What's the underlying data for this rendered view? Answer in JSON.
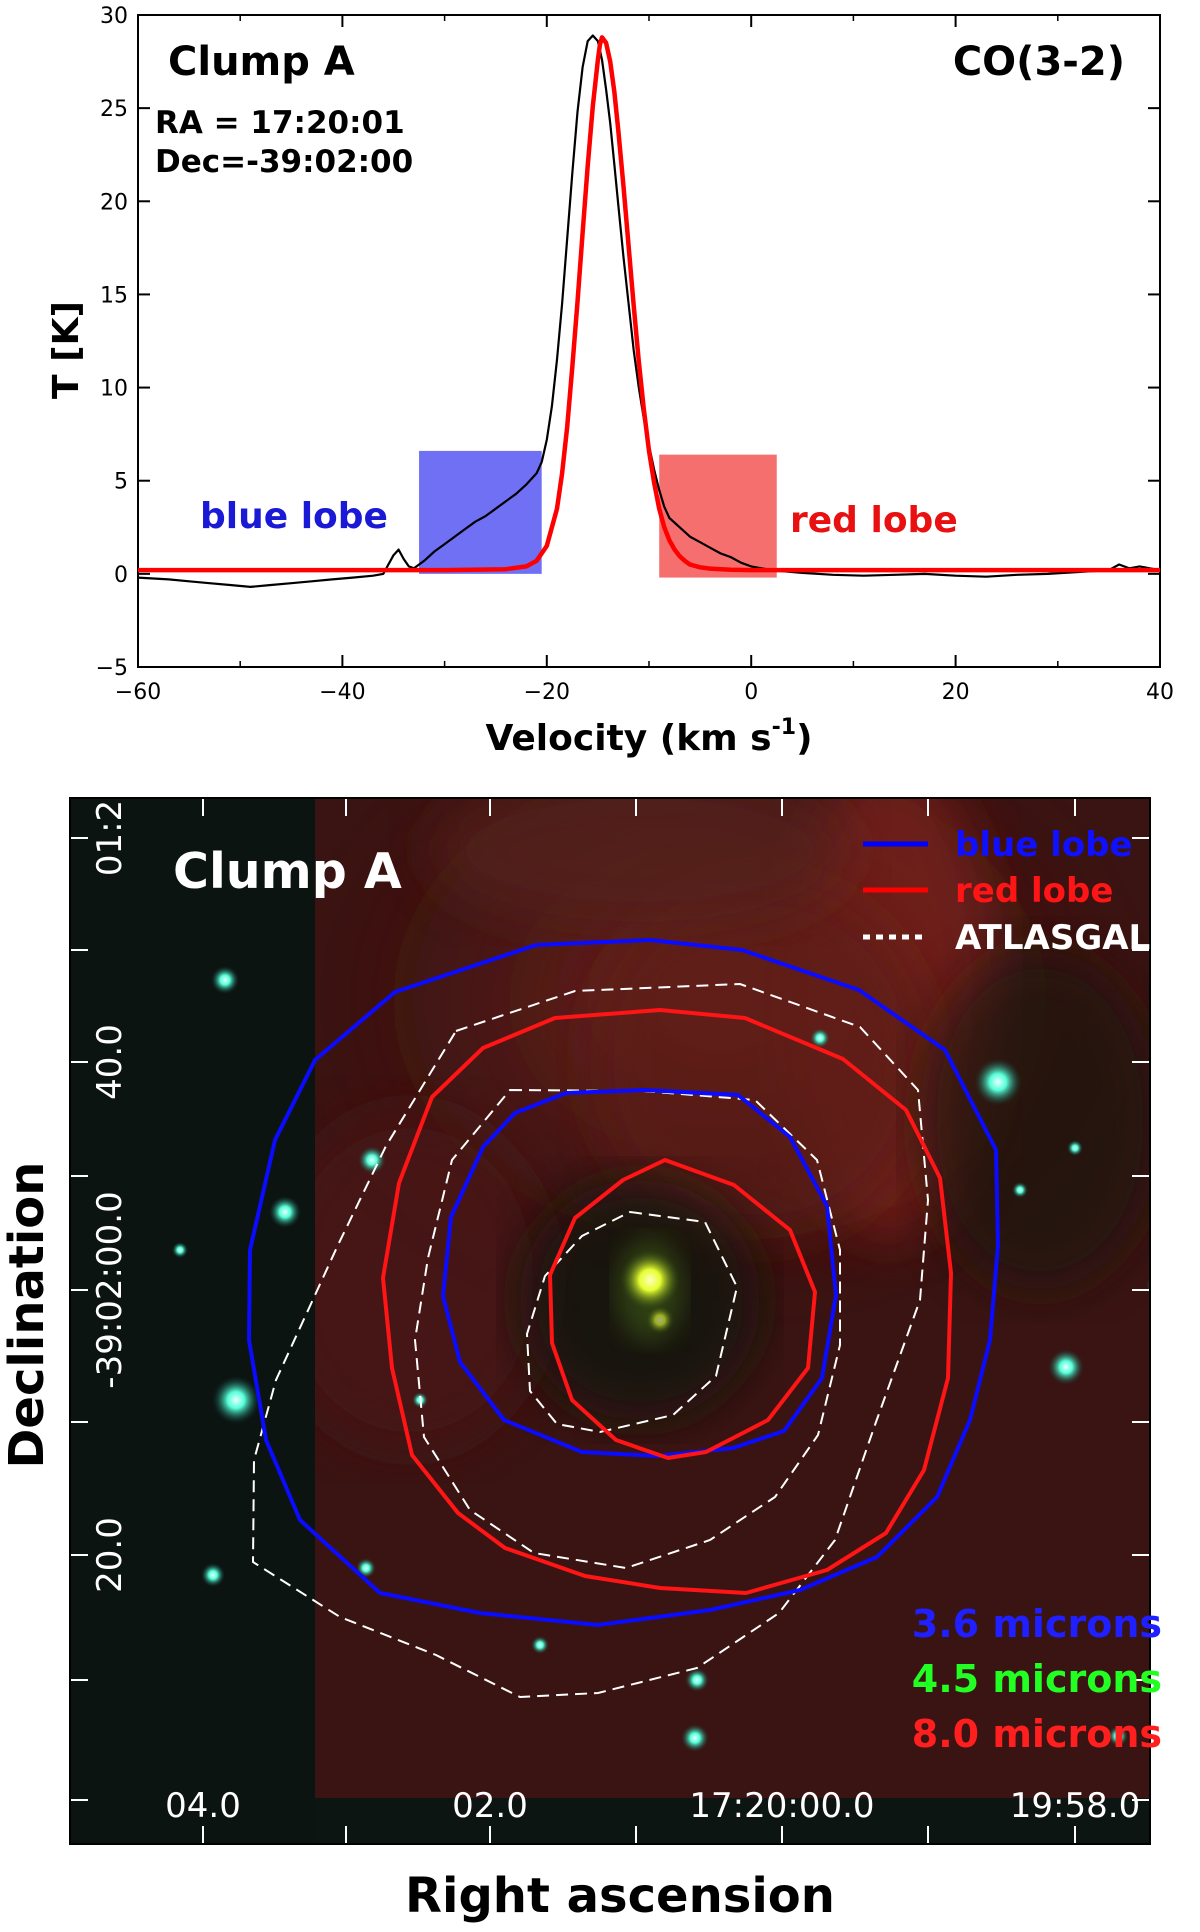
{
  "chart_data": [
    {
      "type": "line",
      "title": "Clump A",
      "line_name": "CO(3-2)",
      "coords": [
        "RA = 17:20:01",
        "Dec=-39:02:00"
      ],
      "xlabel_main": "Velocity (km s",
      "xlabel_sup": "-1",
      "xlabel_close": ")",
      "ylabel": "T [K]",
      "xlim": [
        -60,
        40
      ],
      "ylim": [
        -5,
        30
      ],
      "xticks": [
        -60,
        -40,
        -20,
        0,
        20,
        40
      ],
      "yticks": [
        -5,
        0,
        5,
        10,
        15,
        20,
        25,
        30
      ],
      "regions": [
        {
          "name": "blue lobe",
          "x": [
            -32.5,
            -20.5
          ],
          "y": [
            0,
            6.6
          ],
          "color": "#7070f5",
          "label_color": "#1a1ad6"
        },
        {
          "name": "red lobe",
          "x": [
            -9,
            2.5
          ],
          "y": [
            -0.2,
            6.4
          ],
          "color": "#f56f6f",
          "label_color": "#e81010"
        }
      ],
      "series": [
        {
          "role": "observed spectrum",
          "color": "#000000",
          "x": [
            -60,
            -57,
            -55,
            -53,
            -51,
            -49,
            -47,
            -45,
            -43,
            -41,
            -39,
            -37,
            -36,
            -35.5,
            -35,
            -34.5,
            -34,
            -33.5,
            -33,
            -32.5,
            -32,
            -31,
            -30,
            -29,
            -28,
            -27,
            -26,
            -25,
            -24,
            -23,
            -22,
            -21,
            -20.5,
            -20,
            -19.5,
            -19,
            -18.5,
            -18,
            -17.5,
            -17,
            -16.5,
            -16,
            -15.5,
            -15,
            -14.6,
            -14.2,
            -13.8,
            -13.4,
            -13,
            -12.5,
            -12,
            -11.5,
            -11,
            -10.5,
            -10,
            -9.5,
            -9,
            -8.5,
            -8,
            -7,
            -6,
            -5,
            -4,
            -3,
            -2,
            -1,
            0,
            1,
            2,
            3,
            5,
            8,
            11,
            14,
            17,
            20,
            23,
            26,
            29,
            32,
            35,
            36,
            37,
            38,
            39,
            40
          ],
          "y": [
            -0.2,
            -0.3,
            -0.4,
            -0.5,
            -0.6,
            -0.7,
            -0.6,
            -0.5,
            -0.4,
            -0.3,
            -0.2,
            -0.1,
            0.0,
            0.5,
            1.0,
            1.3,
            0.8,
            0.4,
            0.3,
            0.5,
            0.7,
            1.2,
            1.6,
            2.0,
            2.4,
            2.8,
            3.1,
            3.5,
            3.9,
            4.3,
            4.8,
            5.4,
            6.0,
            7.2,
            9.0,
            11.5,
            14.5,
            18.0,
            21.5,
            24.8,
            27.2,
            28.6,
            28.9,
            28.6,
            27.6,
            26.0,
            24.2,
            22.0,
            19.8,
            17.0,
            14.5,
            12.0,
            10.0,
            8.3,
            6.9,
            5.6,
            4.5,
            3.6,
            3.0,
            2.5,
            2.0,
            1.7,
            1.4,
            1.1,
            0.9,
            0.6,
            0.4,
            0.3,
            0.2,
            0.15,
            0.05,
            -0.05,
            -0.1,
            -0.05,
            0.0,
            -0.1,
            -0.15,
            -0.05,
            0.0,
            0.1,
            0.2,
            0.5,
            0.3,
            0.4,
            0.3,
            0.2
          ]
        },
        {
          "role": "gaussian fit",
          "color": "#ff0000",
          "x": [
            -60,
            -30,
            -24,
            -22,
            -21,
            -20,
            -19,
            -18.5,
            -18,
            -17.5,
            -17,
            -16.5,
            -16,
            -15.5,
            -15,
            -14.8,
            -14.6,
            -14.2,
            -13.8,
            -13.4,
            -13,
            -12.5,
            -12,
            -11.5,
            -11,
            -10.5,
            -10,
            -9.5,
            -9,
            -8.5,
            -8,
            -7.5,
            -7,
            -6.5,
            -6,
            -5,
            -4,
            -2,
            0,
            5,
            40
          ],
          "y": [
            0.2,
            0.2,
            0.25,
            0.4,
            0.7,
            1.5,
            3.5,
            5.4,
            7.9,
            11.1,
            14.6,
            18.3,
            21.9,
            25.1,
            27.6,
            28.4,
            28.8,
            28.5,
            27.5,
            25.9,
            23.8,
            20.8,
            17.6,
            14.4,
            11.4,
            8.8,
            6.6,
            4.9,
            3.5,
            2.5,
            1.8,
            1.3,
            0.95,
            0.7,
            0.5,
            0.35,
            0.28,
            0.22,
            0.2,
            0.2,
            0.2
          ]
        }
      ]
    },
    {
      "type": "image",
      "title": "Clump A",
      "xlabel": "Right ascension",
      "ylabel": "Declination",
      "xticks": [
        "04.0",
        "02.0",
        "17:20:00.0",
        "19:58.0"
      ],
      "yticks": [
        "01:2",
        "40.0",
        "-39:02:00.0",
        "20.0"
      ],
      "legend": [
        {
          "name": "blue lobe",
          "color": "#0000ff",
          "style": "solid"
        },
        {
          "name": "red lobe",
          "color": "#ff0000",
          "style": "solid"
        },
        {
          "name": "ATLASGAL",
          "color": "#ffffff",
          "style": "dotted"
        }
      ],
      "bands": [
        {
          "name": "3.6 microns",
          "color": "#1f1fff"
        },
        {
          "name": "4.5 microns",
          "color": "#22ff22"
        },
        {
          "name": "8.0 microns",
          "color": "#ff1f1f"
        }
      ]
    }
  ]
}
